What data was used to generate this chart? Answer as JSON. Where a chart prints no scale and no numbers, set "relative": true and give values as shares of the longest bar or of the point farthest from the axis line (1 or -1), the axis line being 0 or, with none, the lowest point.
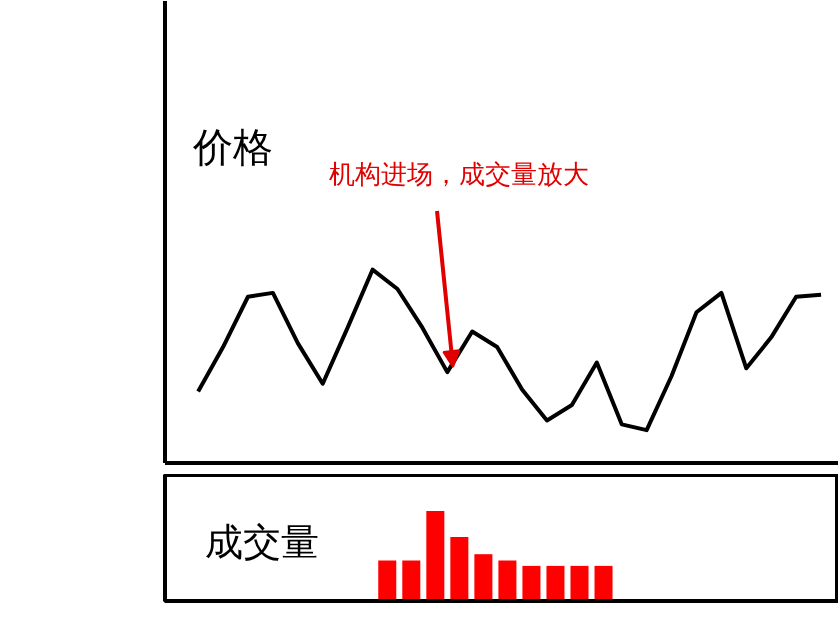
{
  "chart_data": [
    {
      "type": "line",
      "ylabel": "价格",
      "relative": true,
      "tick_labels": false,
      "color": "#000000",
      "categories": [
        null,
        null,
        null,
        null,
        null,
        null,
        null,
        null,
        null,
        null,
        null,
        null,
        null,
        null,
        null,
        null,
        null,
        null,
        null,
        null,
        null,
        null,
        null,
        null,
        null,
        null
      ],
      "values": [
        0.37,
        0.6,
        0.86,
        0.88,
        0.62,
        0.41,
        0.7,
        1.0,
        0.9,
        0.7,
        0.47,
        0.68,
        0.6,
        0.38,
        0.22,
        0.3,
        0.52,
        0.2,
        0.17,
        0.45,
        0.78,
        0.88,
        0.49,
        0.65,
        0.86,
        0.87
      ],
      "annotations": [
        "机构进场，成交量放大"
      ]
    },
    {
      "type": "bar",
      "ylabel": "成交量",
      "relative": true,
      "tick_labels": false,
      "color": "#ff0000",
      "categories": [
        null,
        null,
        null,
        null,
        null,
        null,
        null,
        null,
        null,
        null
      ],
      "values": [
        0.45,
        0.45,
        1.0,
        0.71,
        0.52,
        0.45,
        0.39,
        0.39,
        0.39,
        0.39
      ]
    }
  ]
}
